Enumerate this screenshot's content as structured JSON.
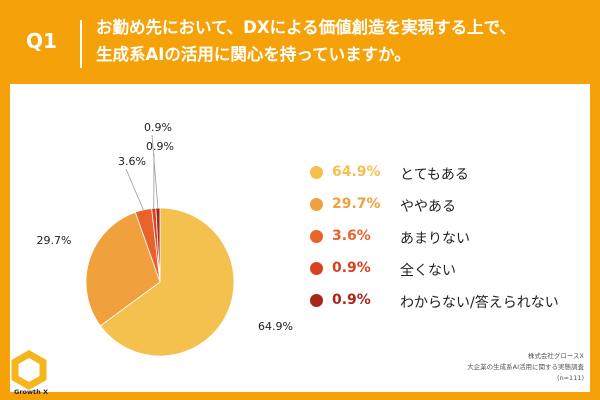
{
  "header": {
    "question_number": "Q1",
    "question_line1": "お勤め先において、DXによる価値創造を実現する上で、",
    "question_line2": "生成系AIの活用に関心を持っていますか。"
  },
  "chart_data": {
    "type": "pie",
    "start_angle_deg": 90,
    "direction": "clockwise",
    "slices": [
      {
        "label": "とてもある",
        "value": 64.9,
        "display": "64.9%",
        "color": "#f4c04e"
      },
      {
        "label": "ややある",
        "value": 29.7,
        "display": "29.7%",
        "color": "#f0a03c"
      },
      {
        "label": "あまりない",
        "value": 3.6,
        "display": "3.6%",
        "color": "#e8622a"
      },
      {
        "label": "全くない",
        "value": 0.9,
        "display": "0.9%",
        "color": "#d8421f"
      },
      {
        "label": "わからない/答えられない",
        "value": 0.9,
        "display": "0.9%",
        "color": "#a8261a"
      }
    ]
  },
  "footer": {
    "brand": "Growth X",
    "credit_line1": "株式会社グロースX",
    "credit_line2": "大企業の生成系AI活用に関する実態調査",
    "credit_line3": "(n=111)"
  },
  "colors": {
    "background": "#f5a20a",
    "panel": "#ffffff",
    "logo": "#f6b51c"
  }
}
